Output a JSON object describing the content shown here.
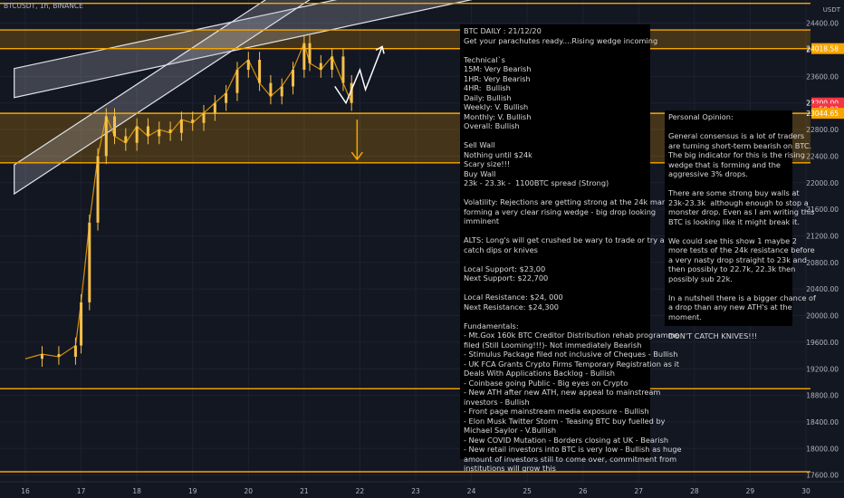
{
  "chart_header": {
    "symbol_line": "BTCUSDT, 1h, BINANCE",
    "currency": "USDT"
  },
  "note_main": {
    "lines": [
      "BTC DAILY : 21/12/20",
      "Get your parachutes ready....Rising wedge incoming",
      "",
      "Technical`s",
      "15M: Very Bearish",
      "1HR: Very Bearish",
      "4HR:  Bullish",
      "Daily: Bullish",
      "Weekly: V. Bullish",
      "Monthly: V. Bullish",
      "Overall: Bullish",
      "",
      "Sell Wall",
      "Nothing until $24k",
      "Scary size!!!",
      "Buy Wall",
      "23k - 23.3k -  1100BTC spread (Strong)",
      "",
      "Volatility: Rejections are getting strong at the 24k mark and",
      "forming a very clear rising wedge - big drop looking",
      "imminent",
      "",
      "ALTS: Long's will get crushed be wary to trade or try and",
      "catch dips or knives",
      "",
      "Local Support: $23,00",
      "Next Support: $22,700",
      "",
      "Local Resistance: $24, 000",
      "Next Resistance: $24,300",
      "",
      "Fundamentals:",
      "- Mt.Gox 160k BTC Creditor Distribution rehab programme",
      "filed (Still Looming!!!)- Not immediately Bearish",
      "- Stimulus Package filed not inclusive of Cheques - Bullish",
      "- UK FCA Grants Crypto Firms Temporary Registration as it",
      "Deals With Applications Backlog - Bullish",
      "- Coinbase going Public - Big eyes on Crypto",
      "- New ATH after new ATH, new appeal to mainstream",
      "investors - Bullish",
      "- Front page mainstream media exposure - Bullish",
      "- Elon Musk Twitter Storm - Teasing BTC buy fuelled by",
      "Michael Saylor - V.Bullish",
      "- New COVID Mutation - Borders closing at UK - Bearish",
      "- New retail investors into BTC is very low - Bullish as huge",
      "amount of investors still to come over, commitment from",
      "institutions will grow this"
    ]
  },
  "note_opinion": {
    "lines": [
      "Personal Opinion:",
      "",
      "General consensus is a lot of traders",
      "are turning short-term bearish on BTC.",
      "The big indicator for this is the rising",
      "wedge that is forming and the",
      "aggressive 3% drops.",
      "",
      "There are some strong buy walls at",
      "23k-23.3k  although enough to stop a",
      "monster drop. Even as I am writing this",
      "BTC is looking like it might break it.",
      "",
      "We could see this show 1 maybe 2",
      "more tests of the 24k resistance before",
      "a very nasty drop straight to 23k and",
      "then possibly to 22.7k, 22.3k then",
      "possibly sub 22k.",
      "",
      "In a nutshell there is a bigger chance of",
      "a drop than any new ATH's at the",
      "moment.",
      "",
      "DON'T CATCH KNIVES!!!"
    ]
  },
  "chart_data": {
    "type": "candlestick",
    "title": "BTCUSDT, 1h, BINANCE",
    "xlabel": "",
    "ylabel": "",
    "x_ticks": [
      "16",
      "17",
      "18",
      "19",
      "20",
      "21",
      "22",
      "23",
      "24",
      "25",
      "26",
      "27",
      "28",
      "29",
      "30"
    ],
    "y_ticks": [
      24400,
      24000,
      23600,
      23200,
      22800,
      22400,
      22000,
      21600,
      21200,
      20800,
      20400,
      20000,
      19600,
      19200,
      18800,
      18400,
      18000,
      17600
    ],
    "ylim": [
      17500,
      24750
    ],
    "price_labels": [
      {
        "text": "24018.58",
        "value": 24018.58,
        "color": "#f7a600"
      },
      {
        "text": "23200.00",
        "value": 23200,
        "color": "#f23645"
      },
      {
        "text": "50:02",
        "value": 23110,
        "color": "#f23645"
      },
      {
        "text": "23044.65",
        "value": 23044.65,
        "color": "#f7a600"
      }
    ],
    "levels": [
      {
        "value": 24700,
        "color": "#f7a600"
      },
      {
        "value": 24300,
        "color": "#f7a600"
      },
      {
        "value": 24018.58,
        "color": "#f7a600"
      },
      {
        "value": 23044.65,
        "color": "#f7a600"
      },
      {
        "value": 22300,
        "color": "#f7a600"
      },
      {
        "value": 18900,
        "color": "#f7a600"
      },
      {
        "value": 17650,
        "color": "#f7a600"
      }
    ],
    "zones": [
      {
        "from": 24018.58,
        "to": 24300,
        "color": "#f7a600"
      },
      {
        "from": 22300,
        "to": 23044.65,
        "color": "#f7a600"
      }
    ],
    "price_path": [
      {
        "x": 16.0,
        "y": 19350
      },
      {
        "x": 16.3,
        "y": 19420
      },
      {
        "x": 16.6,
        "y": 19380
      },
      {
        "x": 16.9,
        "y": 19550
      },
      {
        "x": 17.0,
        "y": 20200
      },
      {
        "x": 17.15,
        "y": 21400
      },
      {
        "x": 17.3,
        "y": 22400
      },
      {
        "x": 17.45,
        "y": 23000
      },
      {
        "x": 17.6,
        "y": 22700
      },
      {
        "x": 17.8,
        "y": 22600
      },
      {
        "x": 18.0,
        "y": 22850
      },
      {
        "x": 18.2,
        "y": 22700
      },
      {
        "x": 18.4,
        "y": 22800
      },
      {
        "x": 18.6,
        "y": 22750
      },
      {
        "x": 18.8,
        "y": 22950
      },
      {
        "x": 19.0,
        "y": 22900
      },
      {
        "x": 19.2,
        "y": 23050
      },
      {
        "x": 19.4,
        "y": 23200
      },
      {
        "x": 19.6,
        "y": 23350
      },
      {
        "x": 19.8,
        "y": 23700
      },
      {
        "x": 20.0,
        "y": 23850
      },
      {
        "x": 20.2,
        "y": 23500
      },
      {
        "x": 20.4,
        "y": 23300
      },
      {
        "x": 20.6,
        "y": 23450
      },
      {
        "x": 20.8,
        "y": 23700
      },
      {
        "x": 21.0,
        "y": 24100
      },
      {
        "x": 21.1,
        "y": 23800
      },
      {
        "x": 21.3,
        "y": 23700
      },
      {
        "x": 21.5,
        "y": 23900
      },
      {
        "x": 21.7,
        "y": 23500
      },
      {
        "x": 21.85,
        "y": 23200
      }
    ],
    "projection": {
      "drop": [
        {
          "x": 21.95,
          "y": 22950
        },
        {
          "x": 21.95,
          "y": 22350
        }
      ],
      "zigzag": [
        {
          "x": 21.55,
          "y": 23450
        },
        {
          "x": 21.75,
          "y": 23200
        },
        {
          "x": 22.0,
          "y": 23700
        },
        {
          "x": 22.1,
          "y": 23400
        },
        {
          "x": 22.4,
          "y": 24050
        }
      ]
    },
    "wedge_channels": [
      {
        "from": {
          "x": 15.8,
          "y": 23500
        },
        "to": {
          "x": 30.0,
          "y": 26050
        }
      },
      {
        "from": {
          "x": 15.8,
          "y": 22050
        },
        "to": {
          "x": 27.5,
          "y": 28500
        }
      }
    ]
  }
}
